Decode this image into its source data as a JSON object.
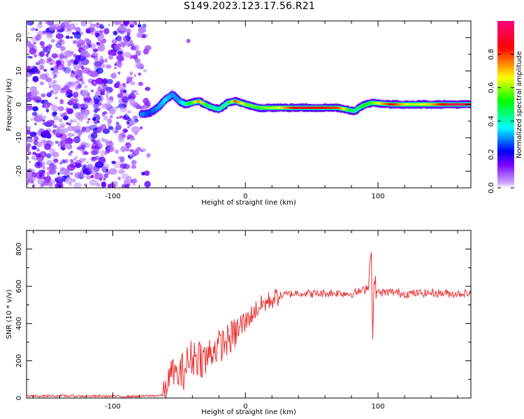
{
  "title": "S149.2023.123.17.56.R21",
  "chart_data": [
    {
      "type": "heatmap",
      "name": "spectrogram",
      "xlabel": "Height of straight line (km)",
      "ylabel": "Frequency (Hz)",
      "xlim": [
        -165,
        170
      ],
      "ylim": [
        -25,
        25
      ],
      "x_ticks": [
        -100,
        0,
        100
      ],
      "y_ticks": [
        -20,
        -10,
        0,
        10,
        20
      ],
      "colorbar": {
        "label": "Normalized spectral amplitude",
        "ticks": [
          0.0,
          0.2,
          0.4,
          0.6,
          0.8
        ],
        "tick_labels": [
          "0.0",
          "0.2",
          "0.4",
          "0.6",
          "0.8"
        ],
        "range": [
          0,
          1
        ],
        "colors": [
          "#ffffff",
          "#7a00ff",
          "#0000ff",
          "#00ffff",
          "#00ff00",
          "#ffff00",
          "#ff0000",
          "#ff0080"
        ]
      },
      "noise_region": {
        "x": [
          -165,
          -73
        ],
        "freq": [
          -25,
          25
        ]
      },
      "signal_track": [
        {
          "x": -78,
          "freq": -3.0,
          "amp": 0.3
        },
        {
          "x": -72,
          "freq": -2.5,
          "amp": 0.25
        },
        {
          "x": -66,
          "freq": -1.0,
          "amp": 0.3
        },
        {
          "x": -60,
          "freq": 1.5,
          "amp": 0.35
        },
        {
          "x": -55,
          "freq": 3.0,
          "amp": 0.3
        },
        {
          "x": -50,
          "freq": 1.0,
          "amp": 0.3
        },
        {
          "x": -45,
          "freq": 0.0,
          "amp": 0.4
        },
        {
          "x": -35,
          "freq": 1.0,
          "amp": 0.75
        },
        {
          "x": -28,
          "freq": -0.5,
          "amp": 0.45
        },
        {
          "x": -20,
          "freq": -1.5,
          "amp": 0.4
        },
        {
          "x": -13,
          "freq": 0.5,
          "amp": 0.45
        },
        {
          "x": -8,
          "freq": 1.0,
          "amp": 0.8
        },
        {
          "x": 0,
          "freq": 0.0,
          "amp": 0.6
        },
        {
          "x": 10,
          "freq": -1.0,
          "amp": 0.55
        },
        {
          "x": 25,
          "freq": -1.0,
          "amp": 0.65
        },
        {
          "x": 40,
          "freq": -1.0,
          "amp": 0.9
        },
        {
          "x": 55,
          "freq": -1.0,
          "amp": 0.85
        },
        {
          "x": 70,
          "freq": -1.0,
          "amp": 0.8
        },
        {
          "x": 82,
          "freq": -2.0,
          "amp": 0.4
        },
        {
          "x": 88,
          "freq": -0.5,
          "amp": 0.5
        },
        {
          "x": 95,
          "freq": 0.5,
          "amp": 0.55
        },
        {
          "x": 110,
          "freq": 0.0,
          "amp": 0.85
        },
        {
          "x": 125,
          "freq": 0.0,
          "amp": 0.6
        },
        {
          "x": 140,
          "freq": 0.0,
          "amp": 0.7
        },
        {
          "x": 155,
          "freq": 0.0,
          "amp": 0.95
        },
        {
          "x": 170,
          "freq": 0.0,
          "amp": 0.95
        }
      ]
    },
    {
      "type": "line",
      "name": "snr",
      "xlabel": "Height of straight line (km)",
      "ylabel": "SNR (10 * v/v)",
      "xlim": [
        -165,
        170
      ],
      "ylim": [
        0,
        900
      ],
      "x_ticks": [
        -100,
        0,
        100
      ],
      "y_ticks": [
        0,
        200,
        400,
        600,
        800
      ],
      "color": "#e83030",
      "x": [
        -165,
        -140,
        -120,
        -100,
        -90,
        -80,
        -70,
        -62,
        -59,
        -55,
        -50,
        -45,
        -40,
        -35,
        -30,
        -25,
        -20,
        -15,
        -10,
        -5,
        0,
        5,
        10,
        15,
        20,
        25,
        30,
        35,
        40,
        50,
        60,
        70,
        80,
        90,
        93,
        95,
        96,
        97,
        100,
        110,
        120,
        140,
        160,
        170
      ],
      "values": [
        10,
        12,
        10,
        10,
        8,
        10,
        12,
        15,
        80,
        150,
        110,
        170,
        220,
        230,
        200,
        260,
        280,
        300,
        330,
        370,
        410,
        450,
        490,
        510,
        530,
        545,
        555,
        560,
        565,
        560,
        562,
        565,
        560,
        580,
        620,
        830,
        300,
        620,
        565,
        570,
        560,
        565,
        560,
        565
      ]
    }
  ]
}
